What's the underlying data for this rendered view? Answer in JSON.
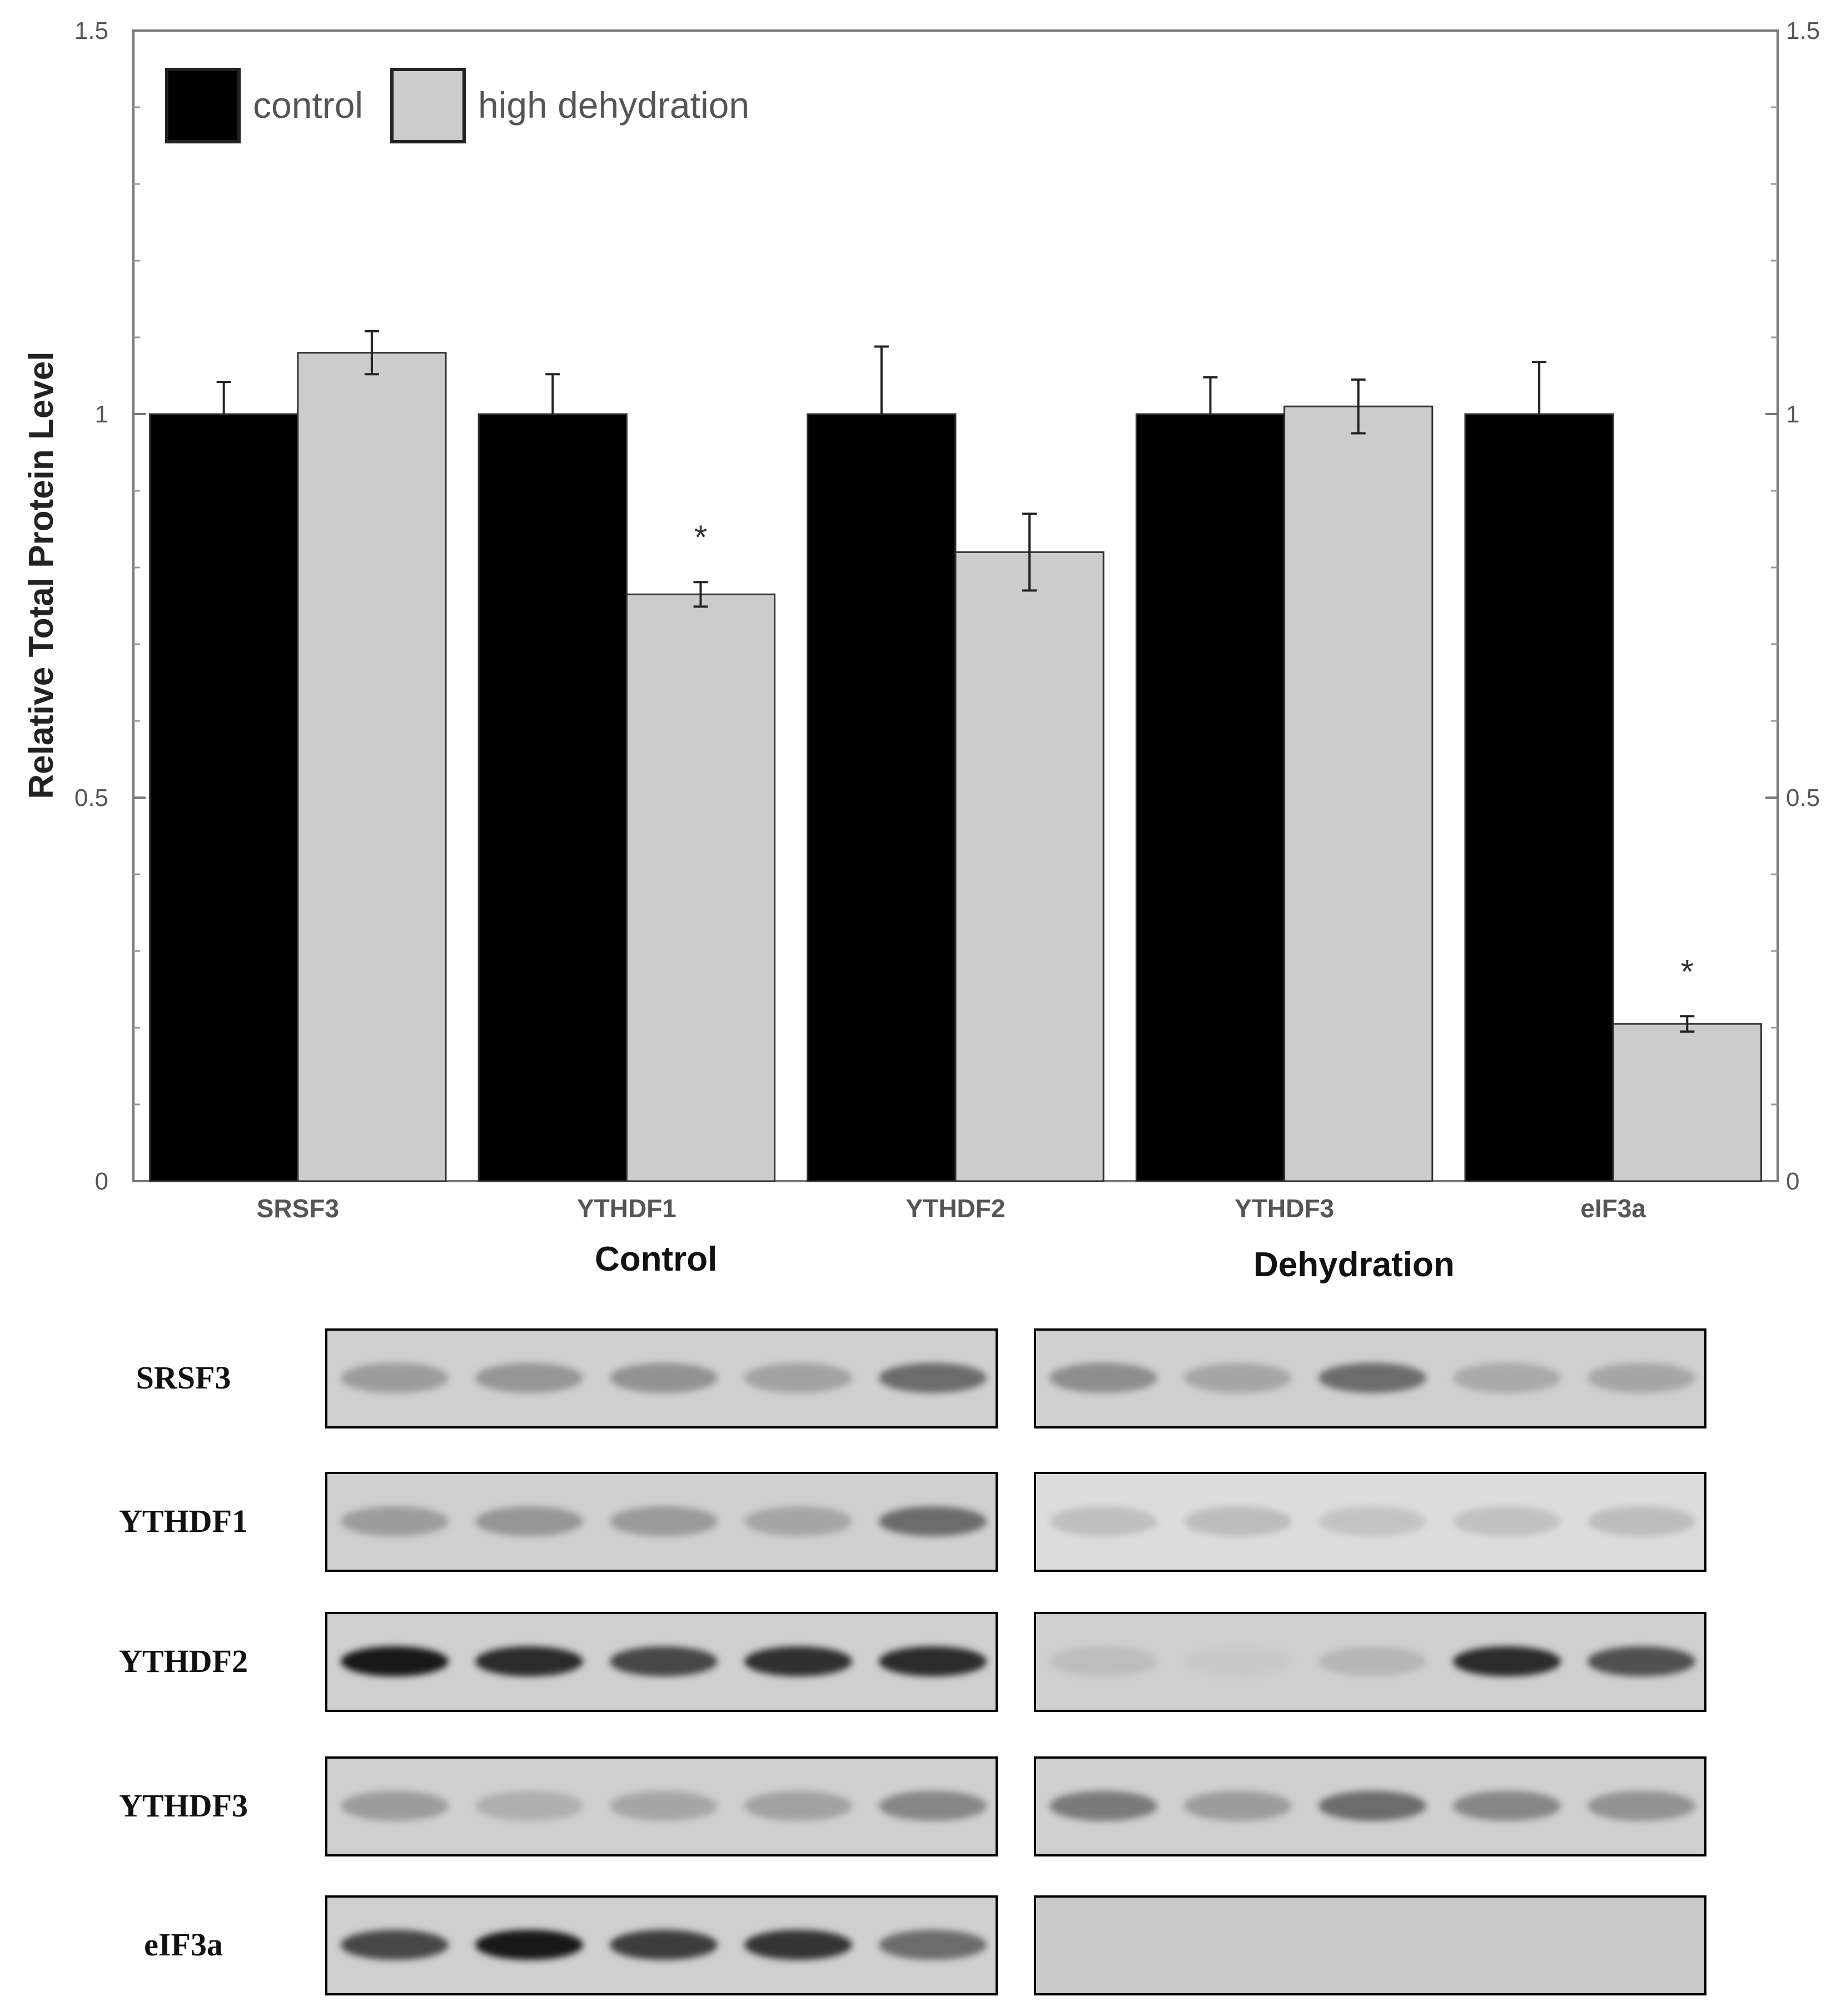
{
  "chart_data": {
    "type": "bar",
    "ylabel": "Relative Total Protein Level",
    "ylim": [
      0,
      1.5
    ],
    "yticks": [
      "0",
      "0.5",
      "1",
      "1.5"
    ],
    "categories": [
      "SRSF3",
      "YTHDF1",
      "YTHDF2",
      "YTHDF3",
      "eIF3a"
    ],
    "series": [
      {
        "name": "control",
        "color": "#000000",
        "values": [
          1.0,
          1.0,
          1.0,
          1.0,
          1.0
        ],
        "errors": [
          0.042,
          0.052,
          0.088,
          0.048,
          0.068
        ]
      },
      {
        "name": "high dehydration",
        "color": "#cccccc",
        "values": [
          1.08,
          0.765,
          0.82,
          1.01,
          0.205
        ],
        "errors": [
          0.028,
          0.016,
          0.05,
          0.035,
          0.01
        ]
      }
    ],
    "significance": [
      {
        "category": "YTHDF1",
        "series": "high dehydration",
        "marker": "*"
      },
      {
        "category": "eIF3a",
        "series": "high dehydration",
        "marker": "*"
      }
    ],
    "legend_position": "top-left",
    "grid": false
  },
  "western_blot": {
    "group_labels": [
      "Control",
      "Dehydration"
    ],
    "proteins": [
      {
        "name": "SRSF3",
        "control_intensity": [
          0.35,
          0.38,
          0.4,
          0.32,
          0.55
        ],
        "dehydration_intensity": [
          0.42,
          0.3,
          0.55,
          0.28,
          0.3
        ]
      },
      {
        "name": "YTHDF1",
        "control_intensity": [
          0.35,
          0.38,
          0.36,
          0.3,
          0.55
        ],
        "dehydration_intensity": [
          0.18,
          0.2,
          0.15,
          0.17,
          0.2
        ]
      },
      {
        "name": "YTHDF2",
        "control_intensity": [
          0.95,
          0.85,
          0.7,
          0.82,
          0.85
        ],
        "dehydration_intensity": [
          0.15,
          0.05,
          0.2,
          0.85,
          0.65
        ]
      },
      {
        "name": "YTHDF3",
        "control_intensity": [
          0.35,
          0.25,
          0.3,
          0.32,
          0.45
        ],
        "dehydration_intensity": [
          0.5,
          0.35,
          0.55,
          0.45,
          0.4
        ]
      },
      {
        "name": "eIF3a",
        "control_intensity": [
          0.7,
          0.95,
          0.75,
          0.8,
          0.55
        ],
        "dehydration_intensity": [
          0,
          0,
          0,
          0,
          0
        ]
      }
    ]
  }
}
